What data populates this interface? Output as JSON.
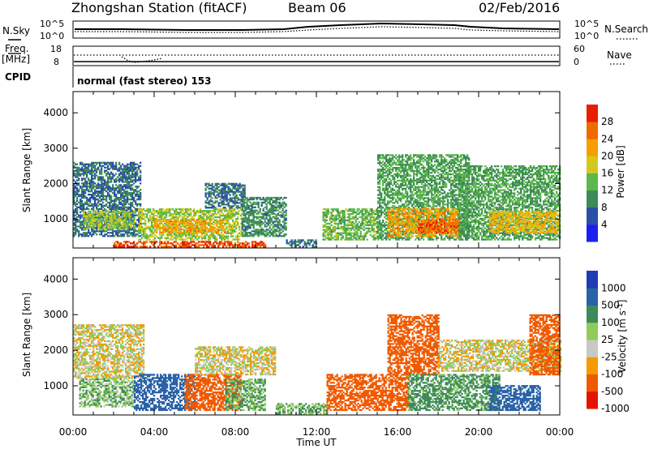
{
  "header": {
    "station": "Zhongshan Station (fitACF)",
    "beam": "Beam 06",
    "date": "02/Feb/2016"
  },
  "params": {
    "nsky_label": "N.Sky",
    "nsearch_label": "N.Search",
    "freq_label": "Freq.",
    "freq_unit": "[MHz]",
    "nave_label": "Nave",
    "cpid_label": "CPID",
    "cpid_value": "normal (fast stereo) 153",
    "noise_ticks": [
      "10^5",
      "10^0"
    ],
    "noise_right_ticks": [
      "10^5",
      "10^0"
    ],
    "freq_ticks": [
      "18",
      "8"
    ],
    "nave_ticks": [
      "60",
      "0"
    ]
  },
  "colors": {
    "power": [
      "#1e1ef0",
      "#2a4fa8",
      "#3e8a5a",
      "#5cb84a",
      "#d4c81e",
      "#f5a000",
      "#ef6a00",
      "#e81e00"
    ],
    "velocity": [
      "#e51400",
      "#ef5a00",
      "#f59a00",
      "#c8c8c4",
      "#8fcc5a",
      "#3e8a5a",
      "#2a62a8",
      "#1e3cb4"
    ]
  },
  "chart_data": [
    {
      "type": "heatmap",
      "name": "power",
      "xlabel": "",
      "ylabel": "Slant Range [km]",
      "x_ticks": [
        "00:00",
        "04:00",
        "08:00",
        "12:00",
        "16:00",
        "20:00",
        "00:00"
      ],
      "y_ticks": [
        "1000",
        "2000",
        "3000",
        "4000"
      ],
      "xlim_hours": [
        0,
        24
      ],
      "ylim_km": [
        180,
        4600
      ],
      "colorbar": {
        "label": "Power [dB]",
        "ticks": [
          "4",
          "8",
          "12",
          "16",
          "20",
          "24",
          "28"
        ],
        "range": [
          0,
          32
        ]
      },
      "echo_regions": [
        {
          "t0": 0.0,
          "t1": 3.3,
          "r0": 500,
          "r1": 2600,
          "value": 8
        },
        {
          "t0": 0.5,
          "t1": 3.0,
          "r0": 700,
          "r1": 1200,
          "value": 16
        },
        {
          "t0": 3.2,
          "t1": 8.3,
          "r0": 400,
          "r1": 1300,
          "value": 16
        },
        {
          "t0": 4.0,
          "t1": 7.5,
          "r0": 600,
          "r1": 1000,
          "value": 22
        },
        {
          "t0": 2.0,
          "t1": 9.5,
          "r0": 200,
          "r1": 380,
          "value": 28
        },
        {
          "t0": 8.3,
          "t1": 10.5,
          "r0": 500,
          "r1": 1600,
          "value": 10
        },
        {
          "t0": 6.5,
          "t1": 8.5,
          "r0": 1300,
          "r1": 2000,
          "value": 8
        },
        {
          "t0": 10.5,
          "t1": 12.0,
          "r0": 200,
          "r1": 400,
          "value": 8
        },
        {
          "t0": 12.3,
          "t1": 15.0,
          "r0": 400,
          "r1": 1300,
          "value": 14
        },
        {
          "t0": 15.0,
          "t1": 19.5,
          "r0": 400,
          "r1": 2800,
          "value": 12
        },
        {
          "t0": 15.5,
          "t1": 19.0,
          "r0": 500,
          "r1": 1300,
          "value": 22
        },
        {
          "t0": 17.0,
          "t1": 19.0,
          "r0": 600,
          "r1": 1000,
          "value": 27
        },
        {
          "t0": 19.0,
          "t1": 24.0,
          "r0": 400,
          "r1": 2500,
          "value": 12
        },
        {
          "t0": 20.5,
          "t1": 24.0,
          "r0": 600,
          "r1": 1200,
          "value": 20
        }
      ]
    },
    {
      "type": "heatmap",
      "name": "velocity",
      "xlabel": "Time UT",
      "ylabel": "Slant Range [km]",
      "x_ticks": [
        "00:00",
        "04:00",
        "08:00",
        "12:00",
        "16:00",
        "20:00",
        "00:00"
      ],
      "y_ticks": [
        "1000",
        "2000",
        "3000",
        "4000"
      ],
      "xlim_hours": [
        0,
        24
      ],
      "ylim_km": [
        180,
        4600
      ],
      "colorbar": {
        "label": "Velocity [m s^-1]",
        "ticks": [
          "1000",
          "500",
          "100",
          "25",
          "-25",
          "-100",
          "-500",
          "-1000"
        ]
      },
      "echo_regions": [
        {
          "t0": 0.0,
          "t1": 3.5,
          "r0": 1200,
          "r1": 2700,
          "value": 0
        },
        {
          "t0": 0.3,
          "t1": 3.0,
          "r0": 400,
          "r1": 1200,
          "value": 80
        },
        {
          "t0": 3.0,
          "t1": 6.0,
          "r0": 300,
          "r1": 1300,
          "value": 700
        },
        {
          "t0": 5.5,
          "t1": 8.3,
          "r0": 300,
          "r1": 1300,
          "value": -300
        },
        {
          "t0": 7.5,
          "t1": 9.5,
          "r0": 300,
          "r1": 1200,
          "value": 100
        },
        {
          "t0": 6.0,
          "t1": 10.0,
          "r0": 1300,
          "r1": 2100,
          "value": 0
        },
        {
          "t0": 10.0,
          "t1": 12.5,
          "r0": 200,
          "r1": 500,
          "value": 100
        },
        {
          "t0": 12.5,
          "t1": 16.5,
          "r0": 300,
          "r1": 1300,
          "value": -300
        },
        {
          "t0": 15.5,
          "t1": 18.0,
          "r0": 1300,
          "r1": 3000,
          "value": -300
        },
        {
          "t0": 16.5,
          "t1": 21.0,
          "r0": 300,
          "r1": 1300,
          "value": 150
        },
        {
          "t0": 18.0,
          "t1": 24.0,
          "r0": 1400,
          "r1": 2300,
          "value": 0
        },
        {
          "t0": 20.5,
          "t1": 23.0,
          "r0": 300,
          "r1": 1000,
          "value": 700
        },
        {
          "t0": 22.5,
          "t1": 24.0,
          "r0": 1300,
          "r1": 3000,
          "value": -300
        }
      ]
    }
  ]
}
